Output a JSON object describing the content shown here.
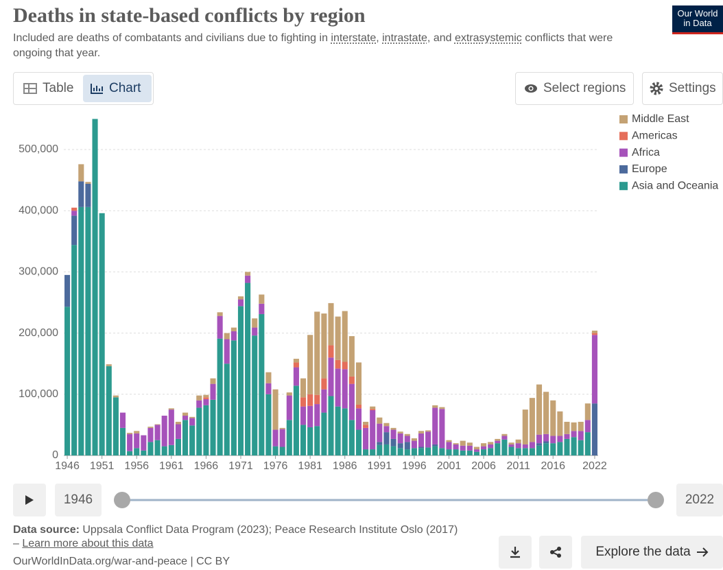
{
  "header": {
    "title": "Deaths in state-based conflicts by region",
    "subtitle": [
      "Included are deaths of combatants and civilians due to fighting in ",
      "interstate",
      ", ",
      "intrastate",
      ", and ",
      "extrasystemic",
      " conflicts that were ongoing that year."
    ],
    "logo": [
      "Our World",
      "in Data"
    ]
  },
  "controls": {
    "table": "Table",
    "chart": "Chart",
    "select": "Select regions",
    "settings": "Settings"
  },
  "footer": {
    "source_label": "Data source:",
    "source": " Uppsala Conflict Data Program (2023); Peace Research Institute Oslo (2017) – ",
    "learn_more": "Learn more about this data",
    "url": "OurWorldInData.org/war-and-peace | CC BY",
    "explore": "Explore the data"
  },
  "chart_data": {
    "type": "stacked-bar",
    "x": [
      1946,
      1947,
      1948,
      1949,
      1950,
      1951,
      1952,
      1953,
      1954,
      1955,
      1956,
      1957,
      1958,
      1959,
      1960,
      1961,
      1962,
      1963,
      1964,
      1965,
      1966,
      1967,
      1968,
      1969,
      1970,
      1971,
      1972,
      1973,
      1974,
      1975,
      1976,
      1977,
      1978,
      1979,
      1980,
      1981,
      1982,
      1983,
      1984,
      1985,
      1986,
      1987,
      1988,
      1989,
      1990,
      1991,
      1992,
      1993,
      1994,
      1995,
      1996,
      1997,
      1998,
      1999,
      2000,
      2001,
      2002,
      2003,
      2004,
      2005,
      2006,
      2007,
      2008,
      2009,
      2010,
      2011,
      2012,
      2013,
      2014,
      2015,
      2016,
      2017,
      2018,
      2019,
      2020,
      2021,
      2022
    ],
    "xlim": [
      1945.5,
      2022.5
    ],
    "xticks": [
      1946,
      1951,
      1956,
      1961,
      1966,
      1971,
      1976,
      1981,
      1986,
      1991,
      1996,
      2001,
      2006,
      2011,
      2016,
      2022
    ],
    "ylim": [
      0,
      550000
    ],
    "yticks": [
      0,
      {
        "value": 100000,
        "label": "100,000"
      },
      {
        "value": 200000,
        "label": "200,000"
      },
      {
        "value": 300000,
        "label": "300,000"
      },
      {
        "value": 400000,
        "label": "400,000"
      },
      {
        "value": 500000,
        "label": "500,000"
      }
    ],
    "grid": true,
    "legend": "right",
    "series": [
      {
        "name": "Asia and Oceania",
        "color": "#2c9a8f",
        "values": [
          243000,
          344000,
          406000,
          406000,
          550000,
          396000,
          146000,
          95000,
          45000,
          7000,
          12000,
          8000,
          22000,
          25000,
          15000,
          17000,
          27000,
          58000,
          49000,
          78000,
          82000,
          91000,
          191000,
          150000,
          188000,
          244000,
          282000,
          196000,
          231000,
          100000,
          15000,
          14000,
          58000,
          114000,
          50000,
          46000,
          48000,
          70000,
          97000,
          80000,
          77000,
          58000,
          42000,
          10000,
          10000,
          17000,
          18000,
          15000,
          12000,
          10000,
          12000,
          12000,
          13000,
          15000,
          12000,
          10000,
          10000,
          8000,
          8000,
          6000,
          10000,
          12000,
          20000,
          26000,
          14000,
          12000,
          12000,
          12000,
          16000,
          20000,
          20000,
          22000,
          27000,
          30000,
          25000,
          38000,
          0
        ]
      },
      {
        "name": "Europe",
        "color": "#4c6a9c",
        "values": [
          52000,
          48000,
          42000,
          38000,
          0,
          0,
          0,
          0,
          0,
          0,
          0,
          0,
          0,
          0,
          0,
          0,
          0,
          0,
          0,
          0,
          0,
          0,
          0,
          0,
          0,
          0,
          0,
          0,
          0,
          0,
          0,
          0,
          0,
          0,
          0,
          0,
          0,
          0,
          0,
          0,
          0,
          0,
          0,
          0,
          0,
          5000,
          20000,
          12000,
          8000,
          12000,
          0,
          2000,
          0,
          3000,
          0,
          0,
          0,
          0,
          0,
          0,
          0,
          0,
          0,
          0,
          0,
          0,
          0,
          0,
          4000,
          3000,
          0,
          0,
          0,
          0,
          0,
          0,
          85000
        ]
      },
      {
        "name": "Africa",
        "color": "#a652ba",
        "values": [
          0,
          8000,
          0,
          0,
          0,
          0,
          0,
          0,
          25000,
          28000,
          24000,
          25000,
          23000,
          25000,
          50000,
          58000,
          24000,
          7000,
          12000,
          12000,
          10000,
          26000,
          37000,
          40000,
          15000,
          11000,
          12000,
          13000,
          17000,
          18000,
          27000,
          29000,
          40000,
          30000,
          30000,
          35000,
          36000,
          38000,
          63000,
          62000,
          64000,
          59000,
          35000,
          35000,
          64000,
          30000,
          10000,
          15000,
          16000,
          10000,
          12000,
          22000,
          26000,
          60000,
          64000,
          12000,
          8000,
          8000,
          8000,
          4000,
          5000,
          6000,
          4000,
          6000,
          4000,
          8000,
          6000,
          10000,
          14000,
          12000,
          12000,
          10000,
          8000,
          10000,
          15000,
          20000,
          112000
        ]
      },
      {
        "name": "Americas",
        "color": "#e56e5a",
        "values": [
          0,
          5000,
          0,
          0,
          0,
          0,
          0,
          0,
          0,
          0,
          0,
          0,
          0,
          0,
          0,
          0,
          0,
          0,
          0,
          0,
          3000,
          0,
          0,
          0,
          0,
          0,
          0,
          0,
          0,
          0,
          0,
          0,
          0,
          8000,
          15000,
          19000,
          15000,
          18000,
          20000,
          14000,
          12000,
          12000,
          6000,
          5000,
          2000,
          0,
          0,
          0,
          0,
          0,
          0,
          0,
          0,
          0,
          0,
          0,
          0,
          0,
          0,
          0,
          0,
          0,
          0,
          0,
          0,
          0,
          0,
          0,
          0,
          0,
          0,
          0,
          0,
          0,
          0,
          0,
          3000
        ]
      },
      {
        "name": "Middle East",
        "color": "#c4a274",
        "values": [
          0,
          0,
          28000,
          3000,
          0,
          0,
          3000,
          3000,
          0,
          2000,
          4000,
          0,
          2000,
          1000,
          0,
          2000,
          4000,
          5000,
          2000,
          8000,
          4000,
          9000,
          6000,
          10000,
          6000,
          5000,
          6000,
          15000,
          15000,
          18000,
          66000,
          2000,
          5000,
          6000,
          31000,
          97000,
          136000,
          106000,
          69000,
          71000,
          83000,
          66000,
          69000,
          5000,
          4000,
          10000,
          5000,
          3000,
          3000,
          3000,
          4000,
          4000,
          2000,
          4000,
          3000,
          3000,
          2000,
          8000,
          5000,
          4000,
          5000,
          4000,
          3000,
          3000,
          3000,
          6000,
          57000,
          72000,
          82000,
          69000,
          58000,
          40000,
          20000,
          14000,
          15000,
          27000,
          4000
        ]
      }
    ]
  }
}
